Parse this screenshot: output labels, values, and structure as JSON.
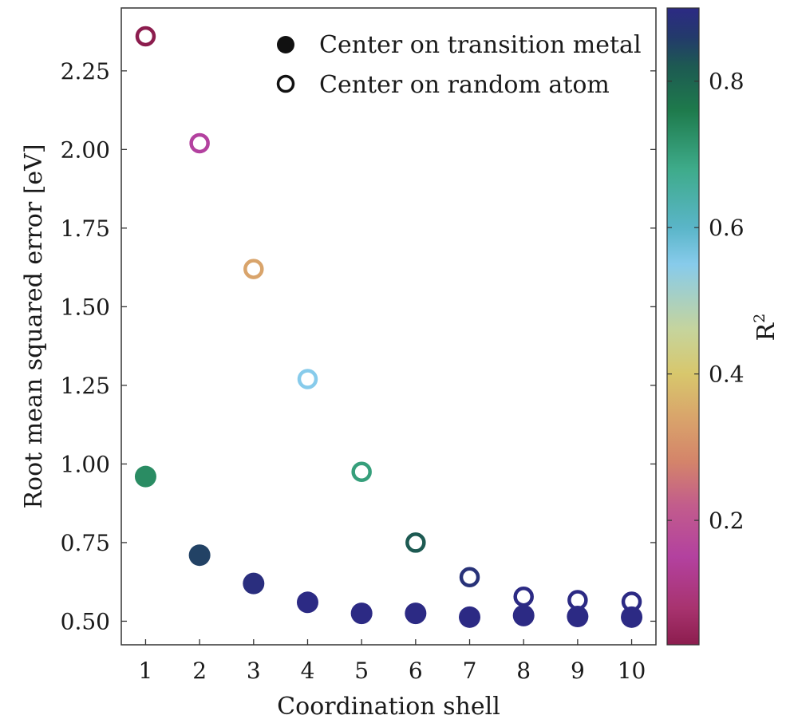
{
  "chart_data": {
    "type": "scatter",
    "xlabel": "Coordination shell",
    "ylabel": "Root mean squared error [eV]",
    "x_ticks": [
      "1",
      "2",
      "3",
      "4",
      "5",
      "6",
      "7",
      "8",
      "9",
      "10"
    ],
    "y_ticks": [
      "0.50",
      "0.75",
      "1.00",
      "1.25",
      "1.50",
      "1.75",
      "2.00",
      "2.25"
    ],
    "xlim": [
      0.55,
      10.45
    ],
    "ylim": [
      0.425,
      2.45
    ],
    "grid": false,
    "legend_position": "top-right",
    "series": [
      {
        "name": "Center on transition metal",
        "marker": "filled",
        "x": [
          1,
          2,
          3,
          4,
          5,
          6,
          7,
          8,
          9,
          10
        ],
        "y": [
          0.96,
          0.71,
          0.62,
          0.56,
          0.525,
          0.525,
          0.513,
          0.518,
          0.515,
          0.513
        ],
        "color_value": [
          0.73,
          0.85,
          0.89,
          0.9,
          0.9,
          0.9,
          0.9,
          0.9,
          0.9,
          0.9
        ]
      },
      {
        "name": "Center on random atom",
        "marker": "hollow",
        "x": [
          1,
          2,
          3,
          4,
          5,
          6,
          7,
          8,
          9,
          10
        ],
        "y": [
          2.36,
          2.02,
          1.62,
          1.27,
          0.975,
          0.75,
          0.64,
          0.578,
          0.567,
          0.562
        ],
        "color_value": [
          0.03,
          0.15,
          0.34,
          0.55,
          0.7,
          0.82,
          0.88,
          0.9,
          0.9,
          0.9
        ]
      }
    ],
    "colorbar": {
      "label": "R",
      "label_superscript": "2",
      "ticks": [
        "0.2",
        "0.4",
        "0.6",
        "0.8"
      ],
      "tick_values": [
        0.2,
        0.4,
        0.6,
        0.8
      ],
      "range": [
        0.03,
        0.9
      ],
      "colormap": "phase",
      "stops": [
        {
          "v": 0.03,
          "color": "#8c1d4e"
        },
        {
          "v": 0.08,
          "color": "#a8336f"
        },
        {
          "v": 0.15,
          "color": "#b3419f"
        },
        {
          "v": 0.22,
          "color": "#c25c8c"
        },
        {
          "v": 0.28,
          "color": "#d4846a"
        },
        {
          "v": 0.34,
          "color": "#d9a46b"
        },
        {
          "v": 0.4,
          "color": "#d8c76c"
        },
        {
          "v": 0.46,
          "color": "#c6d49c"
        },
        {
          "v": 0.55,
          "color": "#87cbeb"
        },
        {
          "v": 0.6,
          "color": "#5ab5c8"
        },
        {
          "v": 0.68,
          "color": "#3eab8a"
        },
        {
          "v": 0.76,
          "color": "#1e7a4c"
        },
        {
          "v": 0.82,
          "color": "#1d5a52"
        },
        {
          "v": 0.86,
          "color": "#233a6b"
        },
        {
          "v": 0.9,
          "color": "#2c2a84"
        }
      ]
    }
  }
}
